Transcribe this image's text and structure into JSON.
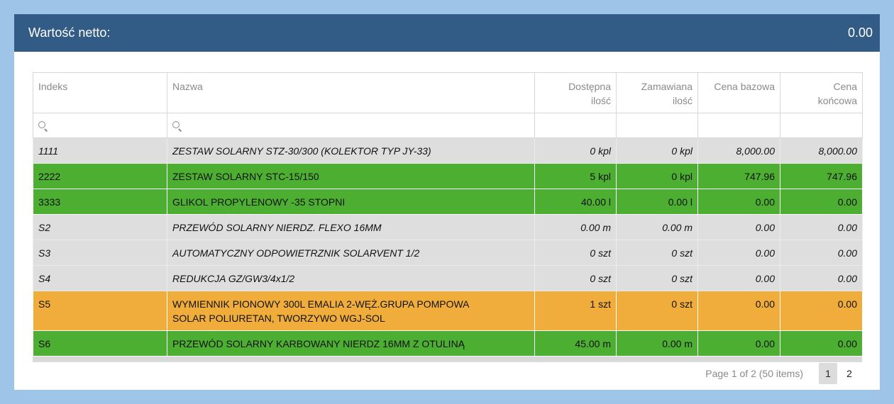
{
  "header": {
    "title": "Wartość netto:",
    "value": "0.00"
  },
  "columns": {
    "indeks": "Indeks",
    "nazwa": "Nazwa",
    "dostepna_1": "Dostępna",
    "dostepna_2": "ilość",
    "zamawiana_1": "Zamawiana",
    "zamawiana_2": "ilość",
    "cena_bazowa": "Cena bazowa",
    "cena_koncowa_1": "Cena",
    "cena_koncowa_2": "końcowa"
  },
  "rows": [
    {
      "status": "gray",
      "indeks": "1111",
      "nazwa": "ZESTAW SOLARNY STZ-30/300 (KOLEKTOR TYP JY-33)",
      "dostepna": "0 kpl",
      "zamawiana": "0 kpl",
      "cena_bazowa": "8,000.00",
      "cena_koncowa": "8,000.00"
    },
    {
      "status": "green",
      "indeks": "2222",
      "nazwa": "ZESTAW SOLARNY STC-15/150",
      "dostepna": "5 kpl",
      "zamawiana": "0 kpl",
      "cena_bazowa": "747.96",
      "cena_koncowa": "747.96"
    },
    {
      "status": "green",
      "indeks": "3333",
      "nazwa": "GLIKOL PROPYLENOWY -35 STOPNI",
      "dostepna": "40.00 l",
      "zamawiana": "0.00 l",
      "cena_bazowa": "0.00",
      "cena_koncowa": "0.00"
    },
    {
      "status": "gray",
      "indeks": "S2",
      "nazwa": "PRZEWÓD SOLARNY NIERDZ. FLEXO 16MM",
      "dostepna": "0.00 m",
      "zamawiana": "0.00 m",
      "cena_bazowa": "0.00",
      "cena_koncowa": "0.00"
    },
    {
      "status": "gray",
      "indeks": "S3",
      "nazwa": "AUTOMATYCZNY ODPOWIETRZNIK SOLARVENT 1/2",
      "dostepna": "0 szt",
      "zamawiana": "0 szt",
      "cena_bazowa": "0.00",
      "cena_koncowa": "0.00"
    },
    {
      "status": "gray",
      "indeks": "S4",
      "nazwa": "REDUKCJA GZ/GW3/4x1/2",
      "dostepna": "0 szt",
      "zamawiana": "0 szt",
      "cena_bazowa": "0.00",
      "cena_koncowa": "0.00"
    },
    {
      "status": "orange",
      "indeks": "S5",
      "nazwa_line1": "WYMIENNIK PIONOWY 300L EMALIA 2-WĘŻ.GRUPA POMPOWA",
      "nazwa_line2": "SOLAR POLIURETAN, TWORZYWO WGJ-SOL",
      "dostepna": "1 szt",
      "zamawiana": "0 szt",
      "cena_bazowa": "0.00",
      "cena_koncowa": "0.00"
    },
    {
      "status": "green",
      "indeks": "S6",
      "nazwa": "PRZEWÓD SOLARNY KARBOWANY NIERDZ 16MM Z OTULINĄ",
      "dostepna": "45.00 m",
      "zamawiana": "0.00 m",
      "cena_bazowa": "0.00",
      "cena_koncowa": "0.00"
    }
  ],
  "pager": {
    "info": "Page 1 of 2 (50 items)",
    "pages": [
      "1",
      "2"
    ],
    "active_page": "1"
  },
  "icons": {
    "filter": "search-icon"
  },
  "colors": {
    "header_bg": "#325c85",
    "gray_row": "#dedede",
    "green_row": "#4caf32",
    "orange_row": "#f1ad3b",
    "page_bg": "#9ec4e8"
  }
}
